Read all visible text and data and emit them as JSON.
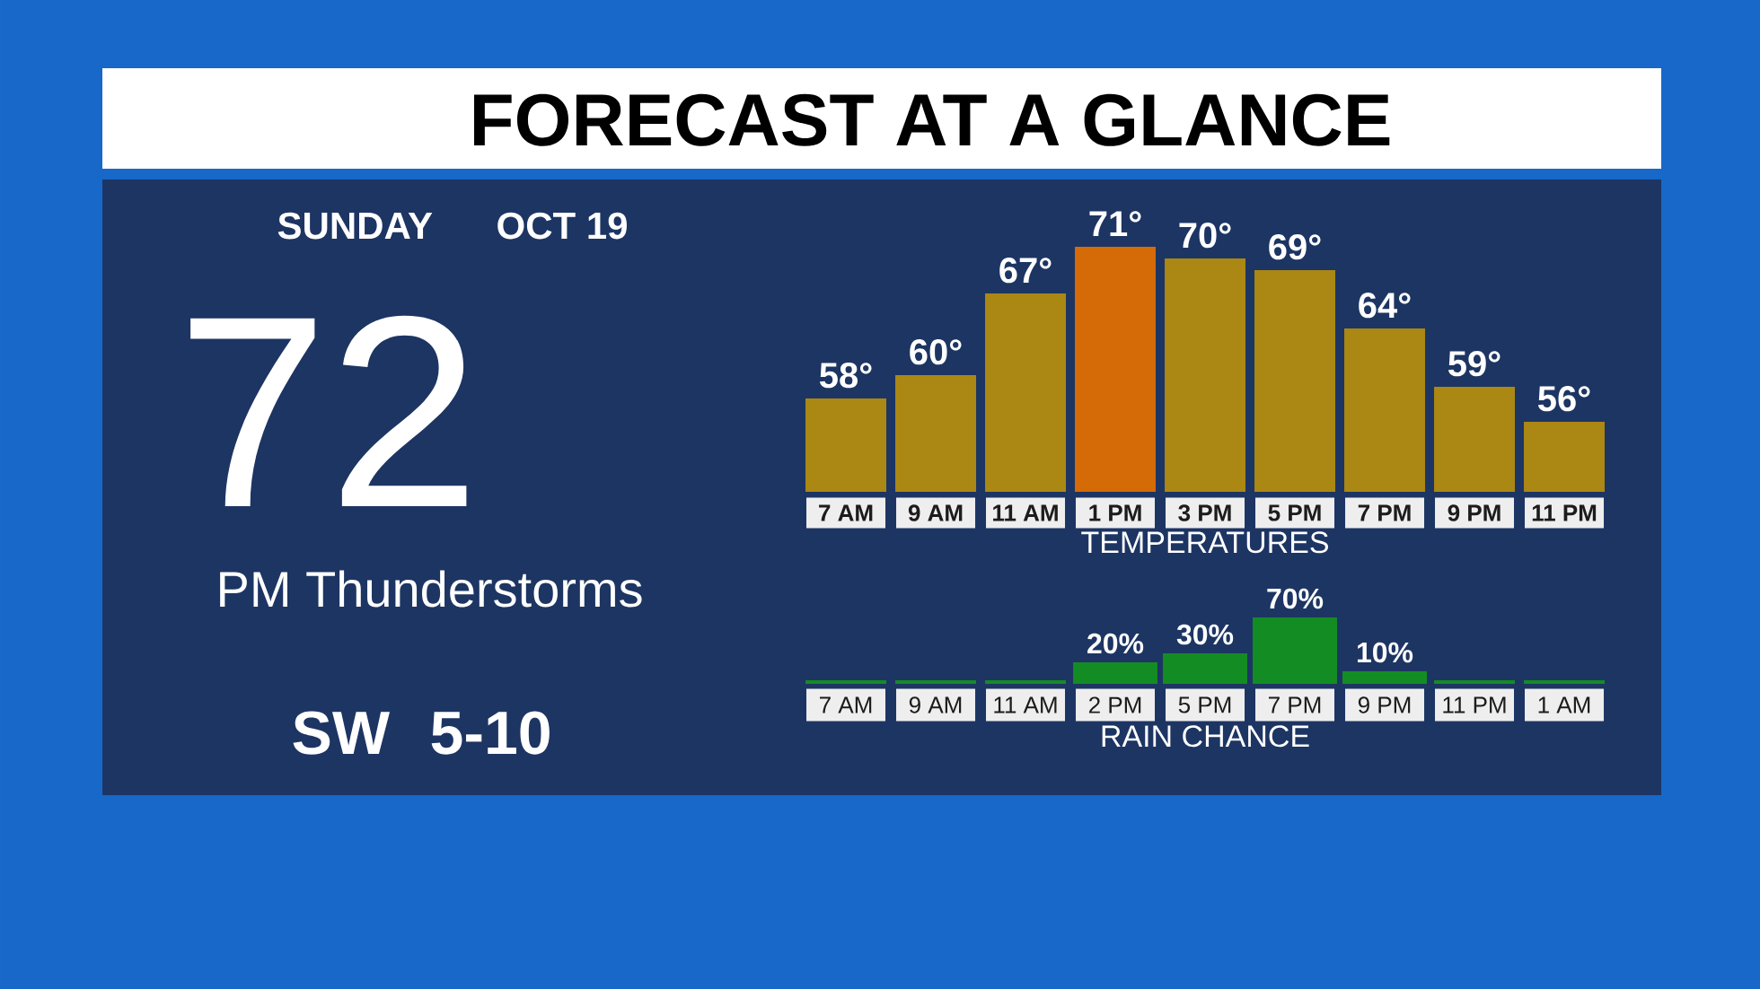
{
  "chart_data": [
    {
      "type": "other",
      "title": "FORECAST AT A GLANCE",
      "annotations": [
        "SUNDAY",
        "OCT 19",
        "72",
        "PM Thunderstorms",
        "SW",
        "5-10"
      ]
    },
    {
      "type": "bar",
      "title": "TEMPERATURES",
      "categories": [
        "7 AM",
        "9 AM",
        "11 AM",
        "1 PM",
        "3 PM",
        "5 PM",
        "7 PM",
        "9 PM",
        "11 PM"
      ],
      "values": [
        58,
        60,
        67,
        71,
        70,
        69,
        64,
        59,
        56
      ],
      "value_labels": [
        "58°",
        "60°",
        "67°",
        "71°",
        "70°",
        "69°",
        "64°",
        "59°",
        "56°"
      ],
      "colors": [
        "#ab8714",
        "#ab8714",
        "#ab8714",
        "#d46b06",
        "#ab8714",
        "#ab8714",
        "#ab8714",
        "#ab8714",
        "#ab8714"
      ],
      "ylim": [
        50,
        71
      ],
      "tick_labels": "x"
    },
    {
      "type": "bar",
      "title": "RAIN CHANCE",
      "categories": [
        "7 AM",
        "9 AM",
        "11 AM",
        "2 PM",
        "5 PM",
        "7 PM",
        "9 PM",
        "11 PM",
        "1 AM"
      ],
      "values": [
        0,
        0,
        0,
        20,
        30,
        70,
        10,
        0,
        0
      ],
      "value_labels": [
        null,
        null,
        null,
        "20%",
        "30%",
        "70%",
        "10%",
        null,
        null
      ],
      "color": "#148c24",
      "ylim": [
        0,
        70
      ],
      "tick_labels": "x"
    }
  ]
}
